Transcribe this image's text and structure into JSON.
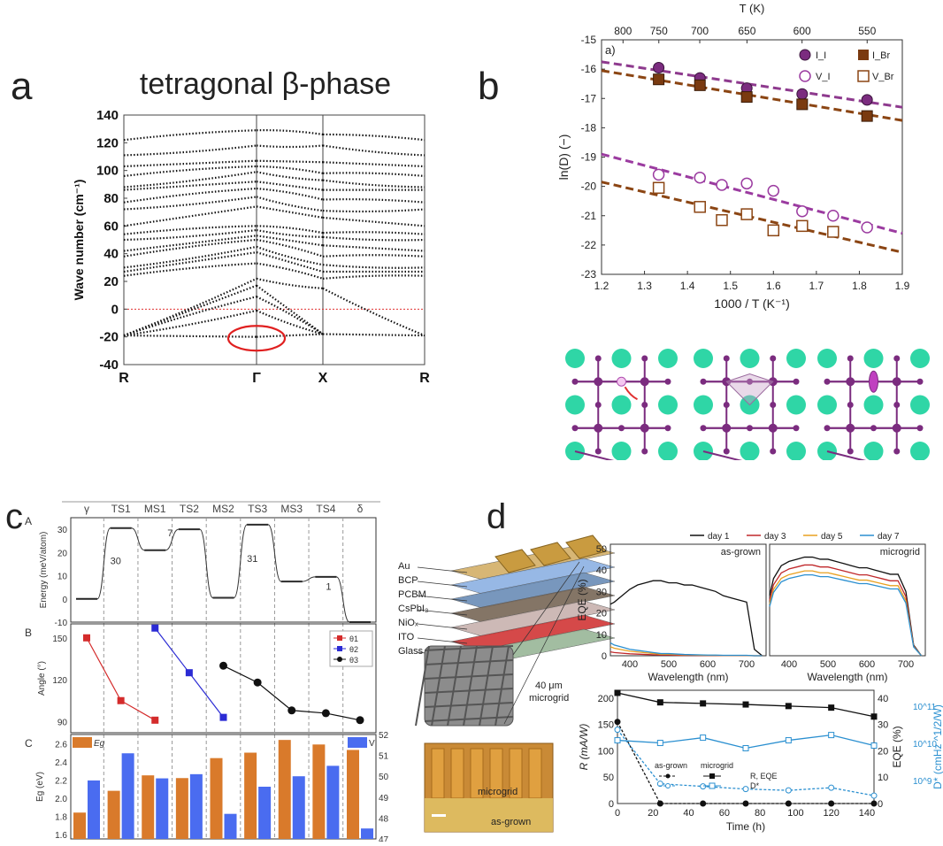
{
  "panels": {
    "a": {
      "letter": "a",
      "title": "tetragonal β-phase",
      "chart_data": {
        "type": "line",
        "ylabel": "Wave number (cm⁻¹)",
        "ylim": [
          -40,
          140
        ],
        "yticks": [
          "140",
          "120",
          "100",
          "80",
          "60",
          "40",
          "20",
          "0",
          "-20",
          "-40"
        ],
        "xticks": [
          "R",
          "Γ",
          "X",
          "R"
        ],
        "zero_line": "red dotted",
        "highlight": "red ellipse at Γ near -20 cm⁻¹",
        "bands_at": {
          "R": [
            122,
            111,
            103,
            96,
            88,
            86,
            77,
            72,
            60,
            54,
            50,
            42,
            38,
            30,
            27,
            24,
            -19
          ],
          "G": [
            129,
            118,
            107,
            103,
            99,
            92,
            87,
            81,
            74,
            60,
            57,
            53,
            50,
            45,
            41,
            33,
            22,
            17,
            9,
            -1,
            -20
          ],
          "X": [
            126,
            118,
            106,
            98,
            93,
            86,
            79,
            71,
            66,
            55,
            52,
            46,
            38,
            32,
            27,
            22,
            15,
            -18
          ],
          "R2": [
            122,
            111,
            103,
            96,
            88,
            86,
            77,
            72,
            60,
            54,
            50,
            42,
            38,
            30,
            27,
            24,
            -19
          ]
        }
      }
    },
    "b": {
      "letter": "b",
      "subpanel": "a)",
      "top_axis_label": "T (K)",
      "top_ticks": [
        "800",
        "750",
        "700",
        "650",
        "600",
        "550"
      ],
      "ylabel": "ln(D) (−)",
      "xlabel": "1000 / T (K⁻¹)",
      "chart_data": {
        "type": "scatter",
        "xlim": [
          1.2,
          1.9
        ],
        "ylim": [
          -23,
          -15
        ],
        "xticks": [
          "1.2",
          "1.3",
          "1.4",
          "1.5",
          "1.6",
          "1.7",
          "1.8",
          "1.9"
        ],
        "yticks": [
          "-15",
          "-16",
          "-17",
          "-18",
          "-19",
          "-20",
          "-21",
          "-22",
          "-23"
        ],
        "legend": [
          "I_I",
          "V_I",
          "I_Br",
          "V_Br"
        ],
        "series": [
          {
            "name": "I_I",
            "color": "#8e3a8e",
            "marker": "filled-circle",
            "x": [
              1.333,
              1.429,
              1.538,
              1.667,
              1.818
            ],
            "y": [
              -15.95,
              -16.3,
              -16.65,
              -16.85,
              -17.05
            ],
            "fit": [
              [
                1.2,
                -15.75
              ],
              [
                1.9,
                -17.3
              ]
            ]
          },
          {
            "name": "I_Br",
            "color": "#8b4513",
            "marker": "filled-square",
            "x": [
              1.333,
              1.429,
              1.538,
              1.667,
              1.818
            ],
            "y": [
              -16.35,
              -16.55,
              -16.95,
              -17.2,
              -17.6
            ],
            "fit": [
              [
                1.2,
                -16.05
              ],
              [
                1.9,
                -17.75
              ]
            ]
          },
          {
            "name": "V_I",
            "color": "#9b3ba0",
            "marker": "open-circle",
            "x": [
              1.333,
              1.429,
              1.48,
              1.538,
              1.6,
              1.667,
              1.739,
              1.818
            ],
            "y": [
              -19.6,
              -19.7,
              -19.95,
              -19.9,
              -20.15,
              -20.85,
              -21.0,
              -21.4
            ],
            "fit": [
              [
                1.2,
                -18.9
              ],
              [
                1.9,
                -21.6
              ]
            ]
          },
          {
            "name": "V_Br",
            "color": "#8b4513",
            "marker": "open-square",
            "x": [
              1.333,
              1.429,
              1.48,
              1.538,
              1.6,
              1.667,
              1.739
            ],
            "y": [
              -20.05,
              -20.7,
              -21.15,
              -20.95,
              -21.5,
              -21.35,
              -21.55
            ],
            "fit": [
              [
                1.2,
                -19.85
              ],
              [
                1.9,
                -22.25
              ]
            ]
          }
        ]
      }
    },
    "c": {
      "letter": "c",
      "stages": [
        "γ",
        "TS1",
        "MS1",
        "TS2",
        "MS2",
        "TS3",
        "MS3",
        "TS4",
        "δ"
      ],
      "subA": {
        "tag": "A",
        "ylabel": "Energy (meV/atom)",
        "yticks": [
          "30",
          "20",
          "10",
          "0",
          "-10"
        ],
        "ylim": [
          -10,
          35
        ],
        "levels": [
          0,
          30.5,
          21,
          30,
          0.5,
          32,
          7.5,
          9.5,
          -10
        ],
        "annotations": [
          "30",
          "7",
          "31",
          "1"
        ]
      },
      "subB": {
        "tag": "B",
        "ylabel": "Angle (°)",
        "yticks": [
          "150",
          "120",
          "90"
        ],
        "ylim": [
          82,
          160
        ],
        "legend": [
          "θ1",
          "θ2",
          "θ3"
        ],
        "series": [
          {
            "name": "θ1",
            "color": "#d42b2b",
            "marker": "square",
            "x": [
              0,
              1,
              2
            ],
            "y": [
              150,
              105,
              91
            ]
          },
          {
            "name": "θ2",
            "color": "#2b2bd4",
            "marker": "square",
            "x": [
              2,
              3,
              4
            ],
            "y": [
              157,
              125,
              93
            ]
          },
          {
            "name": "θ3",
            "color": "#111111",
            "marker": "circle",
            "x": [
              4,
              5,
              6,
              7,
              8
            ],
            "y": [
              130,
              118,
              98,
              96,
              91
            ]
          }
        ]
      },
      "subC": {
        "tag": "C",
        "ylabel": "Eg (eV)",
        "yticks_left": [
          "2.6",
          "2.4",
          "2.2",
          "2.0",
          "1.8",
          "1.6"
        ],
        "yticks_right": [
          "52",
          "51",
          "50",
          "49",
          "48",
          "47"
        ],
        "legend_left": "Eg",
        "legend_right": "V",
        "eg": [
          1.84,
          2.08,
          2.25,
          2.22,
          2.44,
          2.5,
          2.64,
          2.59,
          2.53
        ],
        "vol": [
          49.8,
          51.1,
          49.9,
          50.1,
          48.2,
          49.5,
          50.0,
          50.5,
          47.5
        ]
      }
    },
    "d": {
      "letter": "d",
      "layers": [
        "Au",
        "BCP",
        "PCBM",
        "CsPbI₃",
        "NiOₓ",
        "ITO",
        "Glass"
      ],
      "sem_label": "40 μm\nmicrogrid",
      "sem_label_a": "40 μm",
      "sem_label_b": "microgrid",
      "photo_microgrid": "microgrid",
      "photo_asgrown": "as-grown",
      "eqe_legend": [
        "day 1",
        "day 3",
        "day 5",
        "day 7"
      ],
      "eqe_left_title": "as-grown",
      "eqe_right_title": "microgrid",
      "eqe_ylabel": "EQE (%)",
      "eqe_xlabel": "Wavelength (nm)",
      "eqe_xticks": [
        "400",
        "500",
        "600",
        "700"
      ],
      "eqe_yticks": [
        "50",
        "40",
        "30",
        "20",
        "10",
        "0"
      ],
      "colors": {
        "day1": "#111111",
        "day3": "#c0282b",
        "day5": "#e8a020",
        "day7": "#2a8fd0"
      },
      "rt": {
        "xlabel": "Time (h)",
        "ylabel_left": "R (mA/W)",
        "ylabel_mid": "EQE (%)",
        "ylabel_right": "D* (cmHz ^1/2/W)",
        "xticks": [
          "0",
          "20",
          "40",
          "60",
          "80",
          "100",
          "120",
          "140"
        ],
        "yticks_left": [
          "200",
          "150",
          "100",
          "50",
          "0"
        ],
        "yticks_mid": [
          "40",
          "30",
          "20",
          "10",
          "0"
        ],
        "yticks_right": [
          "10^11",
          "10^10",
          "10^9"
        ],
        "legend_head": [
          "as-grown",
          "microgrid"
        ],
        "legend_rows": [
          "R, EQE",
          "D*"
        ]
      },
      "chart_data": {
        "type": "line",
        "time": [
          0,
          24,
          48,
          72,
          96,
          120,
          144
        ],
        "asgrown_R": [
          155,
          0,
          0,
          0,
          0,
          0,
          0
        ],
        "microgrid_R": [
          210,
          192,
          190,
          188,
          185,
          182,
          165
        ],
        "asgrown_D": [
          28,
          7.5,
          6.5,
          5.5,
          5,
          6,
          3
        ],
        "microgrid_D": [
          24,
          23,
          25,
          21,
          24,
          26,
          22
        ]
      }
    }
  }
}
